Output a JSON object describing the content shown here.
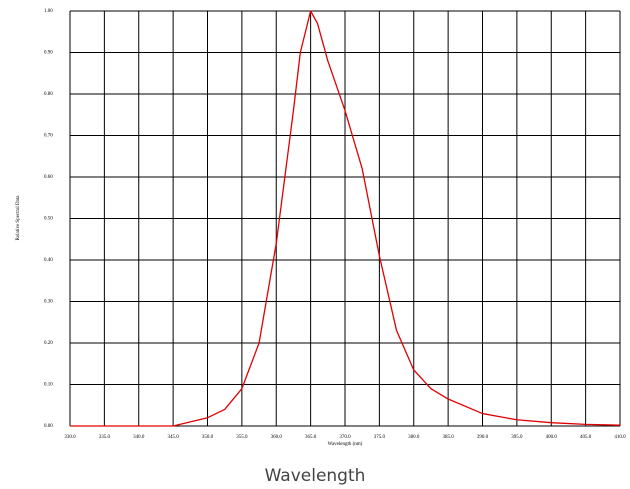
{
  "chart_data": {
    "type": "line",
    "y_label": "Relative Spectral Data",
    "x_label": "Wavelength (nm)",
    "caption": "Wavelength",
    "x": [
      330,
      345,
      350,
      352.5,
      355,
      357.5,
      360,
      362.5,
      363.5,
      365,
      366,
      367.5,
      370,
      372.5,
      375,
      377.5,
      380,
      382.5,
      385,
      390,
      395,
      400,
      405,
      410
    ],
    "series": [
      {
        "name": "Relative Spectral Data",
        "color": "#e00000",
        "values": [
          0,
          0,
          0.02,
          0.04,
          0.09,
          0.2,
          0.44,
          0.76,
          0.9,
          1.0,
          0.97,
          0.88,
          0.76,
          0.62,
          0.41,
          0.23,
          0.135,
          0.09,
          0.065,
          0.03,
          0.015,
          0.008,
          0.004,
          0.002
        ]
      }
    ],
    "xlim": [
      330,
      410
    ],
    "xticks": [
      {
        "value": 330,
        "label": "330.0"
      },
      {
        "value": 335,
        "label": "335.0"
      },
      {
        "value": 340,
        "label": "340.0"
      },
      {
        "value": 345,
        "label": "345.0"
      },
      {
        "value": 350,
        "label": "350.0"
      },
      {
        "value": 355,
        "label": "355.0"
      },
      {
        "value": 360,
        "label": "360.0"
      },
      {
        "value": 365,
        "label": "365.0"
      },
      {
        "value": 370,
        "label": "370.0"
      },
      {
        "value": 375,
        "label": "375.0"
      },
      {
        "value": 380,
        "label": "380.0"
      },
      {
        "value": 385,
        "label": "385.0"
      },
      {
        "value": 390,
        "label": "390.0"
      },
      {
        "value": 395,
        "label": "395.0"
      },
      {
        "value": 400,
        "label": "400.0"
      },
      {
        "value": 405,
        "label": "405.0"
      },
      {
        "value": 410,
        "label": "410.0"
      }
    ],
    "ylim": [
      0,
      1
    ],
    "yticks": [
      {
        "value": 0,
        "label": "0.00"
      },
      {
        "value": 0.1,
        "label": "0.10"
      },
      {
        "value": 0.2,
        "label": "0.20"
      },
      {
        "value": 0.3,
        "label": "0.30"
      },
      {
        "value": 0.4,
        "label": "0.40"
      },
      {
        "value": 0.5,
        "label": "0.50"
      },
      {
        "value": 0.6,
        "label": "0.60"
      },
      {
        "value": 0.7,
        "label": "0.70"
      },
      {
        "value": 0.8,
        "label": "0.80"
      },
      {
        "value": 0.9,
        "label": "0.90"
      },
      {
        "value": 1,
        "label": "1.00"
      }
    ],
    "grid": true
  }
}
